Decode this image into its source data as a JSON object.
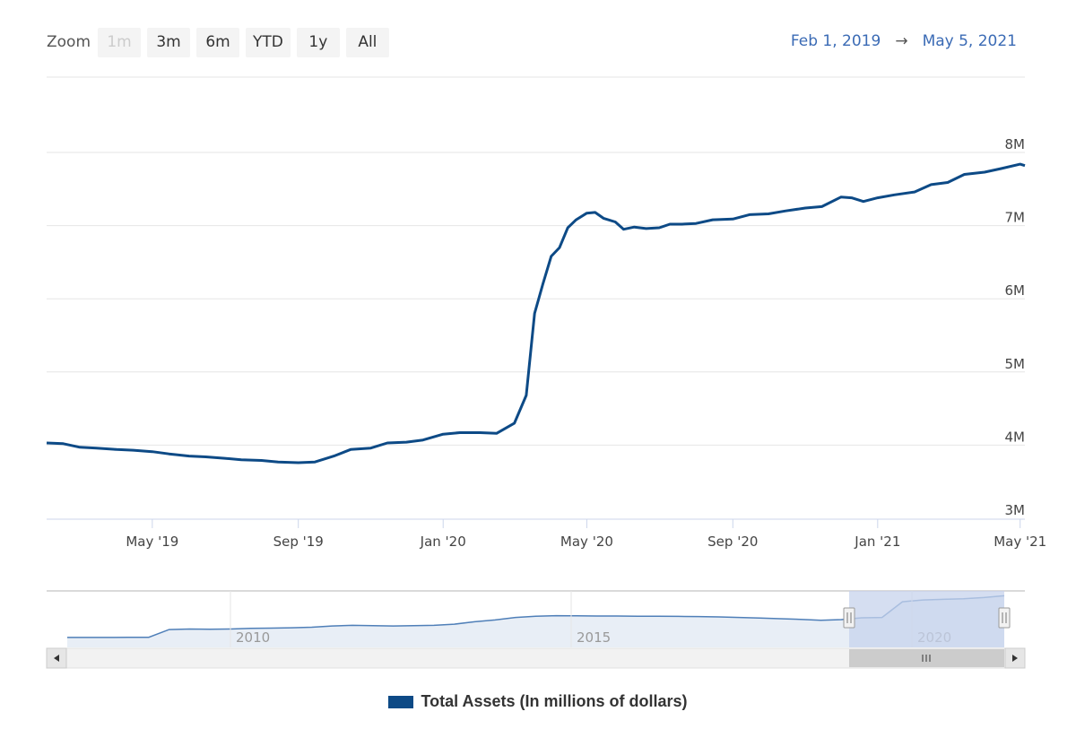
{
  "toolbar": {
    "zoom_label": "Zoom",
    "buttons": [
      {
        "label": "1m",
        "disabled": true
      },
      {
        "label": "3m",
        "disabled": false
      },
      {
        "label": "6m",
        "disabled": false
      },
      {
        "label": "YTD",
        "disabled": false
      },
      {
        "label": "1y",
        "disabled": false
      },
      {
        "label": "All",
        "disabled": false
      }
    ]
  },
  "range": {
    "from": "Feb 1, 2019",
    "arrow": "→",
    "to": "May 5, 2021"
  },
  "legend": {
    "label": "Total Assets (In millions of dollars)"
  },
  "colors": {
    "series": "#0d4a86",
    "navigator_fill": "#e8eef6",
    "navigator_mask": "#c7d3ec"
  },
  "chart_data": {
    "type": "line",
    "title": "",
    "xlabel": "",
    "ylabel": "",
    "ylim": [
      3000000,
      8000000
    ],
    "xlim": [
      "2019-02-01",
      "2021-05-05"
    ],
    "y_ticks": [
      {
        "value": 3000000,
        "label": "3M"
      },
      {
        "value": 4000000,
        "label": "4M"
      },
      {
        "value": 5000000,
        "label": "5M"
      },
      {
        "value": 6000000,
        "label": "6M"
      },
      {
        "value": 7000000,
        "label": "7M"
      },
      {
        "value": 8000000,
        "label": "8M"
      }
    ],
    "x_ticks": [
      {
        "date": "2019-05-01",
        "label": "May '19"
      },
      {
        "date": "2019-09-01",
        "label": "Sep '19"
      },
      {
        "date": "2020-01-01",
        "label": "Jan '20"
      },
      {
        "date": "2020-05-01",
        "label": "May '20"
      },
      {
        "date": "2020-09-01",
        "label": "Sep '20"
      },
      {
        "date": "2021-01-01",
        "label": "Jan '21"
      },
      {
        "date": "2021-05-01",
        "label": "May '21"
      }
    ],
    "grid": true,
    "legend_position": "bottom-center",
    "series": [
      {
        "name": "Total Assets (In millions of dollars)",
        "x": [
          "2019-02-01",
          "2019-02-15",
          "2019-03-01",
          "2019-03-15",
          "2019-04-01",
          "2019-04-15",
          "2019-05-01",
          "2019-05-15",
          "2019-06-01",
          "2019-06-15",
          "2019-07-01",
          "2019-07-15",
          "2019-08-01",
          "2019-08-15",
          "2019-09-01",
          "2019-09-15",
          "2019-10-01",
          "2019-10-15",
          "2019-11-01",
          "2019-11-15",
          "2019-12-01",
          "2019-12-15",
          "2020-01-01",
          "2020-01-15",
          "2020-02-01",
          "2020-02-15",
          "2020-03-01",
          "2020-03-11",
          "2020-03-18",
          "2020-03-25",
          "2020-04-01",
          "2020-04-08",
          "2020-04-15",
          "2020-04-22",
          "2020-05-01",
          "2020-05-08",
          "2020-05-15",
          "2020-05-25",
          "2020-06-01",
          "2020-06-10",
          "2020-06-20",
          "2020-07-01",
          "2020-07-10",
          "2020-07-20",
          "2020-08-01",
          "2020-08-15",
          "2020-09-01",
          "2020-09-15",
          "2020-10-01",
          "2020-10-15",
          "2020-11-01",
          "2020-11-15",
          "2020-12-01",
          "2020-12-10",
          "2020-12-20",
          "2021-01-01",
          "2021-01-15",
          "2021-02-01",
          "2021-02-15",
          "2021-03-01",
          "2021-03-15",
          "2021-04-01",
          "2021-04-15",
          "2021-05-01",
          "2021-05-05"
        ],
        "y": [
          4030000,
          4020000,
          3970000,
          3960000,
          3940000,
          3930000,
          3910000,
          3880000,
          3850000,
          3840000,
          3820000,
          3800000,
          3790000,
          3770000,
          3760000,
          3770000,
          3850000,
          3940000,
          3960000,
          4030000,
          4040000,
          4070000,
          4150000,
          4170000,
          4170000,
          4160000,
          4300000,
          4680000,
          5800000,
          6200000,
          6580000,
          6700000,
          6970000,
          7080000,
          7170000,
          7180000,
          7100000,
          7050000,
          6950000,
          6980000,
          6960000,
          6970000,
          7020000,
          7020000,
          7030000,
          7080000,
          7090000,
          7150000,
          7160000,
          7200000,
          7240000,
          7260000,
          7390000,
          7380000,
          7330000,
          7380000,
          7420000,
          7460000,
          7560000,
          7590000,
          7700000,
          7730000,
          7780000,
          7840000,
          7820000
        ]
      }
    ],
    "navigator": {
      "x_ticks": [
        "2010",
        "2015",
        "2020"
      ],
      "y": [
        900000,
        900000,
        910000,
        920000,
        930000,
        2200000,
        2300000,
        2250000,
        2300000,
        2400000,
        2450000,
        2500000,
        2600000,
        2800000,
        2900000,
        2850000,
        2800000,
        2850000,
        2900000,
        3100000,
        3500000,
        3800000,
        4200000,
        4400000,
        4500000,
        4480000,
        4450000,
        4450000,
        4420000,
        4400000,
        4380000,
        4350000,
        4300000,
        4200000,
        4100000,
        4000000,
        3900000,
        3750000,
        3850000,
        4150000,
        4200000,
        6800000,
        7100000,
        7200000,
        7300000,
        7500000,
        7800000
      ]
    }
  }
}
